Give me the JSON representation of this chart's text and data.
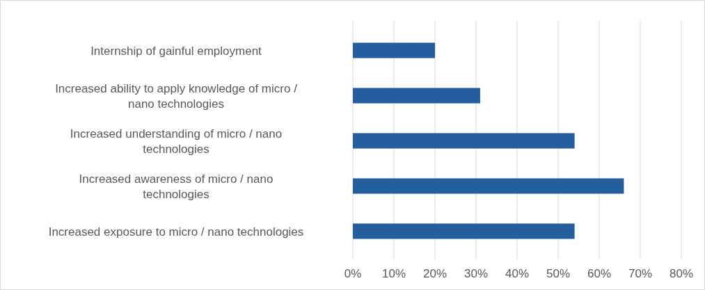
{
  "chart_data": {
    "type": "bar",
    "orientation": "horizontal",
    "categories": [
      "Internship of gainful employment",
      "Increased ability to apply knowledge of micro / nano technologies",
      "Increased understanding of micro / nano technologies",
      "Increased awareness of micro / nano technologies",
      "Increased exposure to micro / nano technologies"
    ],
    "values": [
      20,
      31,
      54,
      66,
      54
    ],
    "color": "#255e9f",
    "xlim": [
      0,
      80
    ],
    "xticks": [
      {
        "value": 0,
        "label": "0%"
      },
      {
        "value": 10,
        "label": "10%"
      },
      {
        "value": 20,
        "label": "20%"
      },
      {
        "value": 30,
        "label": "30%"
      },
      {
        "value": 40,
        "label": "40%"
      },
      {
        "value": 50,
        "label": "50%"
      },
      {
        "value": 60,
        "label": "60%"
      },
      {
        "value": 70,
        "label": "70%"
      },
      {
        "value": 80,
        "label": "80%"
      }
    ],
    "grid": "x"
  }
}
